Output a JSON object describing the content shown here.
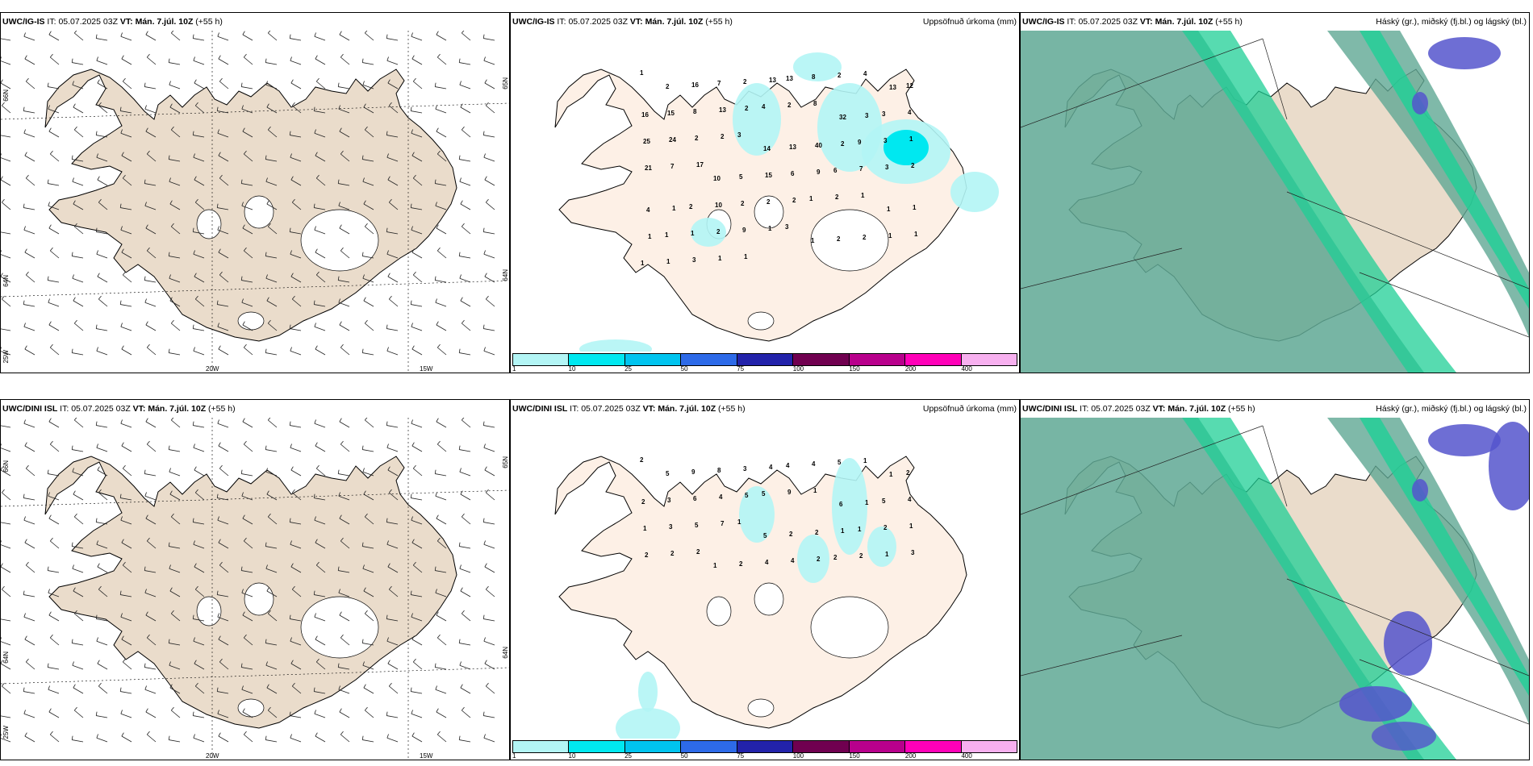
{
  "rows": [
    {
      "model": "UWC/IG-IS",
      "it_label": "IT:",
      "it_value": "05.07.2025 03Z",
      "vt_label": "VT:",
      "vt_value": "Mán. 7.júl. 10Z",
      "lead": "(+55 h)",
      "precip_numbers": [
        "1",
        "2",
        "16",
        "7",
        "2",
        "13",
        "13",
        "8",
        "2",
        "4",
        "13",
        "12",
        "16",
        "15",
        "8",
        "13",
        "2",
        "4",
        "2",
        "8",
        "32",
        "3",
        "3",
        "4",
        "25",
        "24",
        "2",
        "2",
        "3",
        "14",
        "13",
        "40",
        "2",
        "9",
        "3",
        "1",
        "21",
        "7",
        "17",
        "10",
        "5",
        "15",
        "6",
        "9",
        "6",
        "7",
        "3",
        "2",
        "4",
        "1",
        "2",
        "10",
        "2",
        "2",
        "2",
        "1",
        "2",
        "1",
        "1",
        "1",
        "1",
        "1",
        "1",
        "2",
        "9",
        "1",
        "3",
        "1",
        "2",
        "2",
        "1",
        "1",
        "1",
        "1",
        "3",
        "1",
        "1"
      ]
    },
    {
      "model": "UWC/DINI ISL",
      "it_label": "IT:",
      "it_value": "05.07.2025 03Z",
      "vt_label": "VT:",
      "vt_value": "Mán. 7.júl. 10Z",
      "lead": "(+55 h)",
      "precip_numbers": [
        "2",
        "5",
        "9",
        "8",
        "3",
        "4",
        "4",
        "4",
        "5",
        "1",
        "1",
        "2",
        "2",
        "3",
        "6",
        "4",
        "5",
        "5",
        "9",
        "1",
        "6",
        "1",
        "5",
        "4",
        "1",
        "3",
        "5",
        "7",
        "1",
        "5",
        "2",
        "2",
        "1",
        "1",
        "2",
        "1",
        "2",
        "2",
        "2",
        "1",
        "2",
        "4",
        "4",
        "2",
        "2",
        "2",
        "1",
        "3"
      ]
    }
  ],
  "precip_title": "Uppsöfnuð úrkoma (mm)",
  "cloud_title": "Háský (gr.), miðský (fj.bl.) og lágský (bl.)",
  "colorbar": {
    "labels": [
      "1",
      "10",
      "25",
      "50",
      "75",
      "100",
      "150",
      "200",
      "400"
    ],
    "colors": [
      "#b3f5f5",
      "#00e8f0",
      "#00c4ef",
      "#2d6ae8",
      "#2222aa",
      "#700050",
      "#b8008c",
      "#ff00b8",
      "#f7b0ef"
    ]
  },
  "lon_labels": [
    "20W",
    "15W"
  ],
  "lat_labels_left": [
    "66N",
    "64N",
    "25W"
  ],
  "lat_labels_right": [
    "65N",
    "64N"
  ],
  "colors": {
    "land": "#eadccb",
    "land_precip": "#fdf0e6",
    "ice": "#ffffff",
    "precip_light": "#b3f5f5",
    "precip_mid": "#00e8f0",
    "cloud_high": "#5fa894",
    "cloud_mid": "#1fcf96",
    "cloud_low": "#5555cc"
  }
}
